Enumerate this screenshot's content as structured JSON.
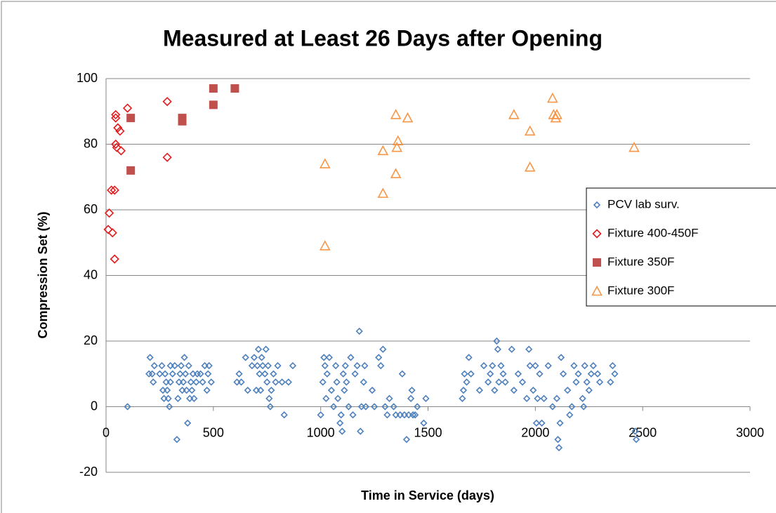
{
  "chart_data": {
    "type": "scatter",
    "title": "Measured at Least 26 Days after Opening",
    "x_label": "Time in Service (days)",
    "y_label": "Compression Set (%)",
    "xlim": [
      0,
      3000
    ],
    "xticks": [
      0,
      500,
      1000,
      1500,
      2000,
      2500,
      3000
    ],
    "ylim": [
      -20,
      100
    ],
    "yticks": [
      -20,
      0,
      20,
      40,
      60,
      80,
      100
    ],
    "grid": true,
    "legend": "right",
    "series": [
      {
        "name": "PCV lab surv.",
        "color": "#4f81bd",
        "marker": "diamond",
        "filled": false,
        "x": [
          100,
          200,
          205,
          215,
          220,
          225,
          250,
          260,
          265,
          270,
          275,
          280,
          285,
          290,
          295,
          300,
          300,
          310,
          320,
          330,
          335,
          340,
          345,
          350,
          355,
          360,
          365,
          370,
          375,
          380,
          385,
          390,
          395,
          400,
          405,
          410,
          420,
          425,
          440,
          450,
          460,
          470,
          475,
          480,
          490,
          610,
          620,
          630,
          650,
          660,
          680,
          690,
          700,
          705,
          710,
          715,
          720,
          725,
          730,
          740,
          745,
          750,
          755,
          760,
          765,
          770,
          780,
          790,
          800,
          820,
          830,
          850,
          870,
          1000,
          1010,
          1015,
          1020,
          1025,
          1030,
          1040,
          1050,
          1060,
          1070,
          1075,
          1080,
          1090,
          1095,
          1100,
          1105,
          1110,
          1115,
          1120,
          1130,
          1140,
          1150,
          1160,
          1170,
          1180,
          1185,
          1190,
          1200,
          1205,
          1210,
          1240,
          1250,
          1270,
          1280,
          1290,
          1300,
          1310,
          1320,
          1340,
          1350,
          1370,
          1380,
          1390,
          1400,
          1410,
          1420,
          1425,
          1430,
          1440,
          1450,
          1480,
          1490,
          1660,
          1665,
          1670,
          1680,
          1690,
          1700,
          1740,
          1760,
          1780,
          1790,
          1800,
          1810,
          1820,
          1825,
          1830,
          1840,
          1850,
          1860,
          1890,
          1900,
          1920,
          1940,
          1960,
          1970,
          1975,
          1990,
          2000,
          2005,
          2010,
          2020,
          2030,
          2040,
          2060,
          2080,
          2100,
          2105,
          2110,
          2115,
          2120,
          2130,
          2150,
          2160,
          2170,
          2180,
          2190,
          2200,
          2220,
          2225,
          2230,
          2240,
          2250,
          2260,
          2270,
          2290,
          2300,
          2350,
          2360,
          2370,
          2465,
          2470
        ],
        "values": [
          0,
          10,
          15,
          10,
          7.5,
          12.5,
          10,
          12.5,
          5,
          2.5,
          10,
          7.5,
          5,
          2.5,
          0,
          12.5,
          7.5,
          10,
          12.5,
          -10,
          2.5,
          7.5,
          10,
          12.5,
          5,
          7.5,
          15,
          10,
          5,
          -5,
          12.5,
          2.5,
          7.5,
          5,
          10,
          2.5,
          7.5,
          10,
          10,
          7.5,
          12.5,
          5,
          10,
          12.5,
          7.5,
          7.5,
          10,
          7.5,
          15,
          5,
          12.5,
          15,
          5,
          12.5,
          17.5,
          10,
          5,
          15,
          12.5,
          10,
          17.5,
          7.5,
          12.5,
          2.5,
          0,
          5,
          10,
          7.5,
          12.5,
          7.5,
          -2.5,
          7.5,
          12.5,
          -2.5,
          7.5,
          15,
          12.5,
          2.5,
          10,
          15,
          5,
          0,
          12.5,
          7.5,
          2.5,
          -5,
          -2.5,
          -7.5,
          10,
          5,
          12.5,
          7.5,
          0,
          15,
          -2.5,
          10,
          12.5,
          23,
          -7.5,
          0,
          7.5,
          12.5,
          0,
          5,
          0,
          15,
          12.5,
          17.5,
          0,
          -2.5,
          2.5,
          0,
          -2.5,
          -2.5,
          10,
          -2.5,
          -10,
          -2.5,
          2.5,
          5,
          -2.5,
          -2.5,
          0,
          -5,
          2.5,
          2.5,
          5,
          10,
          7.5,
          15,
          10,
          5,
          12.5,
          7.5,
          10,
          12.5,
          5,
          20,
          17.5,
          7.5,
          12.5,
          10,
          7.5,
          17.5,
          5,
          10,
          7.5,
          2.5,
          17.5,
          12.5,
          5,
          12.5,
          -5,
          2.5,
          10,
          -5,
          2.5,
          12.5,
          0,
          2.5,
          -10,
          -12.5,
          -5,
          15,
          10,
          5,
          -2.5,
          0,
          12.5,
          7.5,
          10,
          2.5,
          0,
          12.5,
          7.5,
          5,
          10,
          12.5,
          10,
          7.5,
          7.5,
          12.5,
          10,
          -7.5,
          -10
        ]
      },
      {
        "name": "Fixture 400-450F",
        "color": "#e41a1c",
        "marker": "diamond",
        "filled": false,
        "x": [
          10,
          15,
          25,
          30,
          40,
          40,
          45,
          45,
          45,
          50,
          55,
          65,
          70,
          100,
          285,
          285
        ],
        "values": [
          54,
          59,
          66,
          53,
          66,
          45,
          89,
          88,
          80,
          79,
          85,
          84,
          78,
          91,
          93,
          76
        ]
      },
      {
        "name": "Fixture 350F",
        "color": "#c0504d",
        "marker": "square",
        "filled": true,
        "x": [
          115,
          115,
          355,
          355,
          500,
          500,
          600
        ],
        "values": [
          88,
          72,
          88,
          87,
          97,
          92,
          97
        ]
      },
      {
        "name": "Fixture 300F",
        "color": "#f79646",
        "marker": "triangle",
        "filled": false,
        "x": [
          1020,
          1020,
          1290,
          1290,
          1350,
          1350,
          1355,
          1360,
          1405,
          1900,
          1975,
          1975,
          2080,
          2085,
          2095,
          2100,
          2460
        ],
        "values": [
          74,
          49,
          78,
          65,
          89,
          71,
          79,
          81,
          88,
          89,
          84,
          73,
          94,
          89,
          88,
          89,
          79
        ]
      }
    ]
  }
}
